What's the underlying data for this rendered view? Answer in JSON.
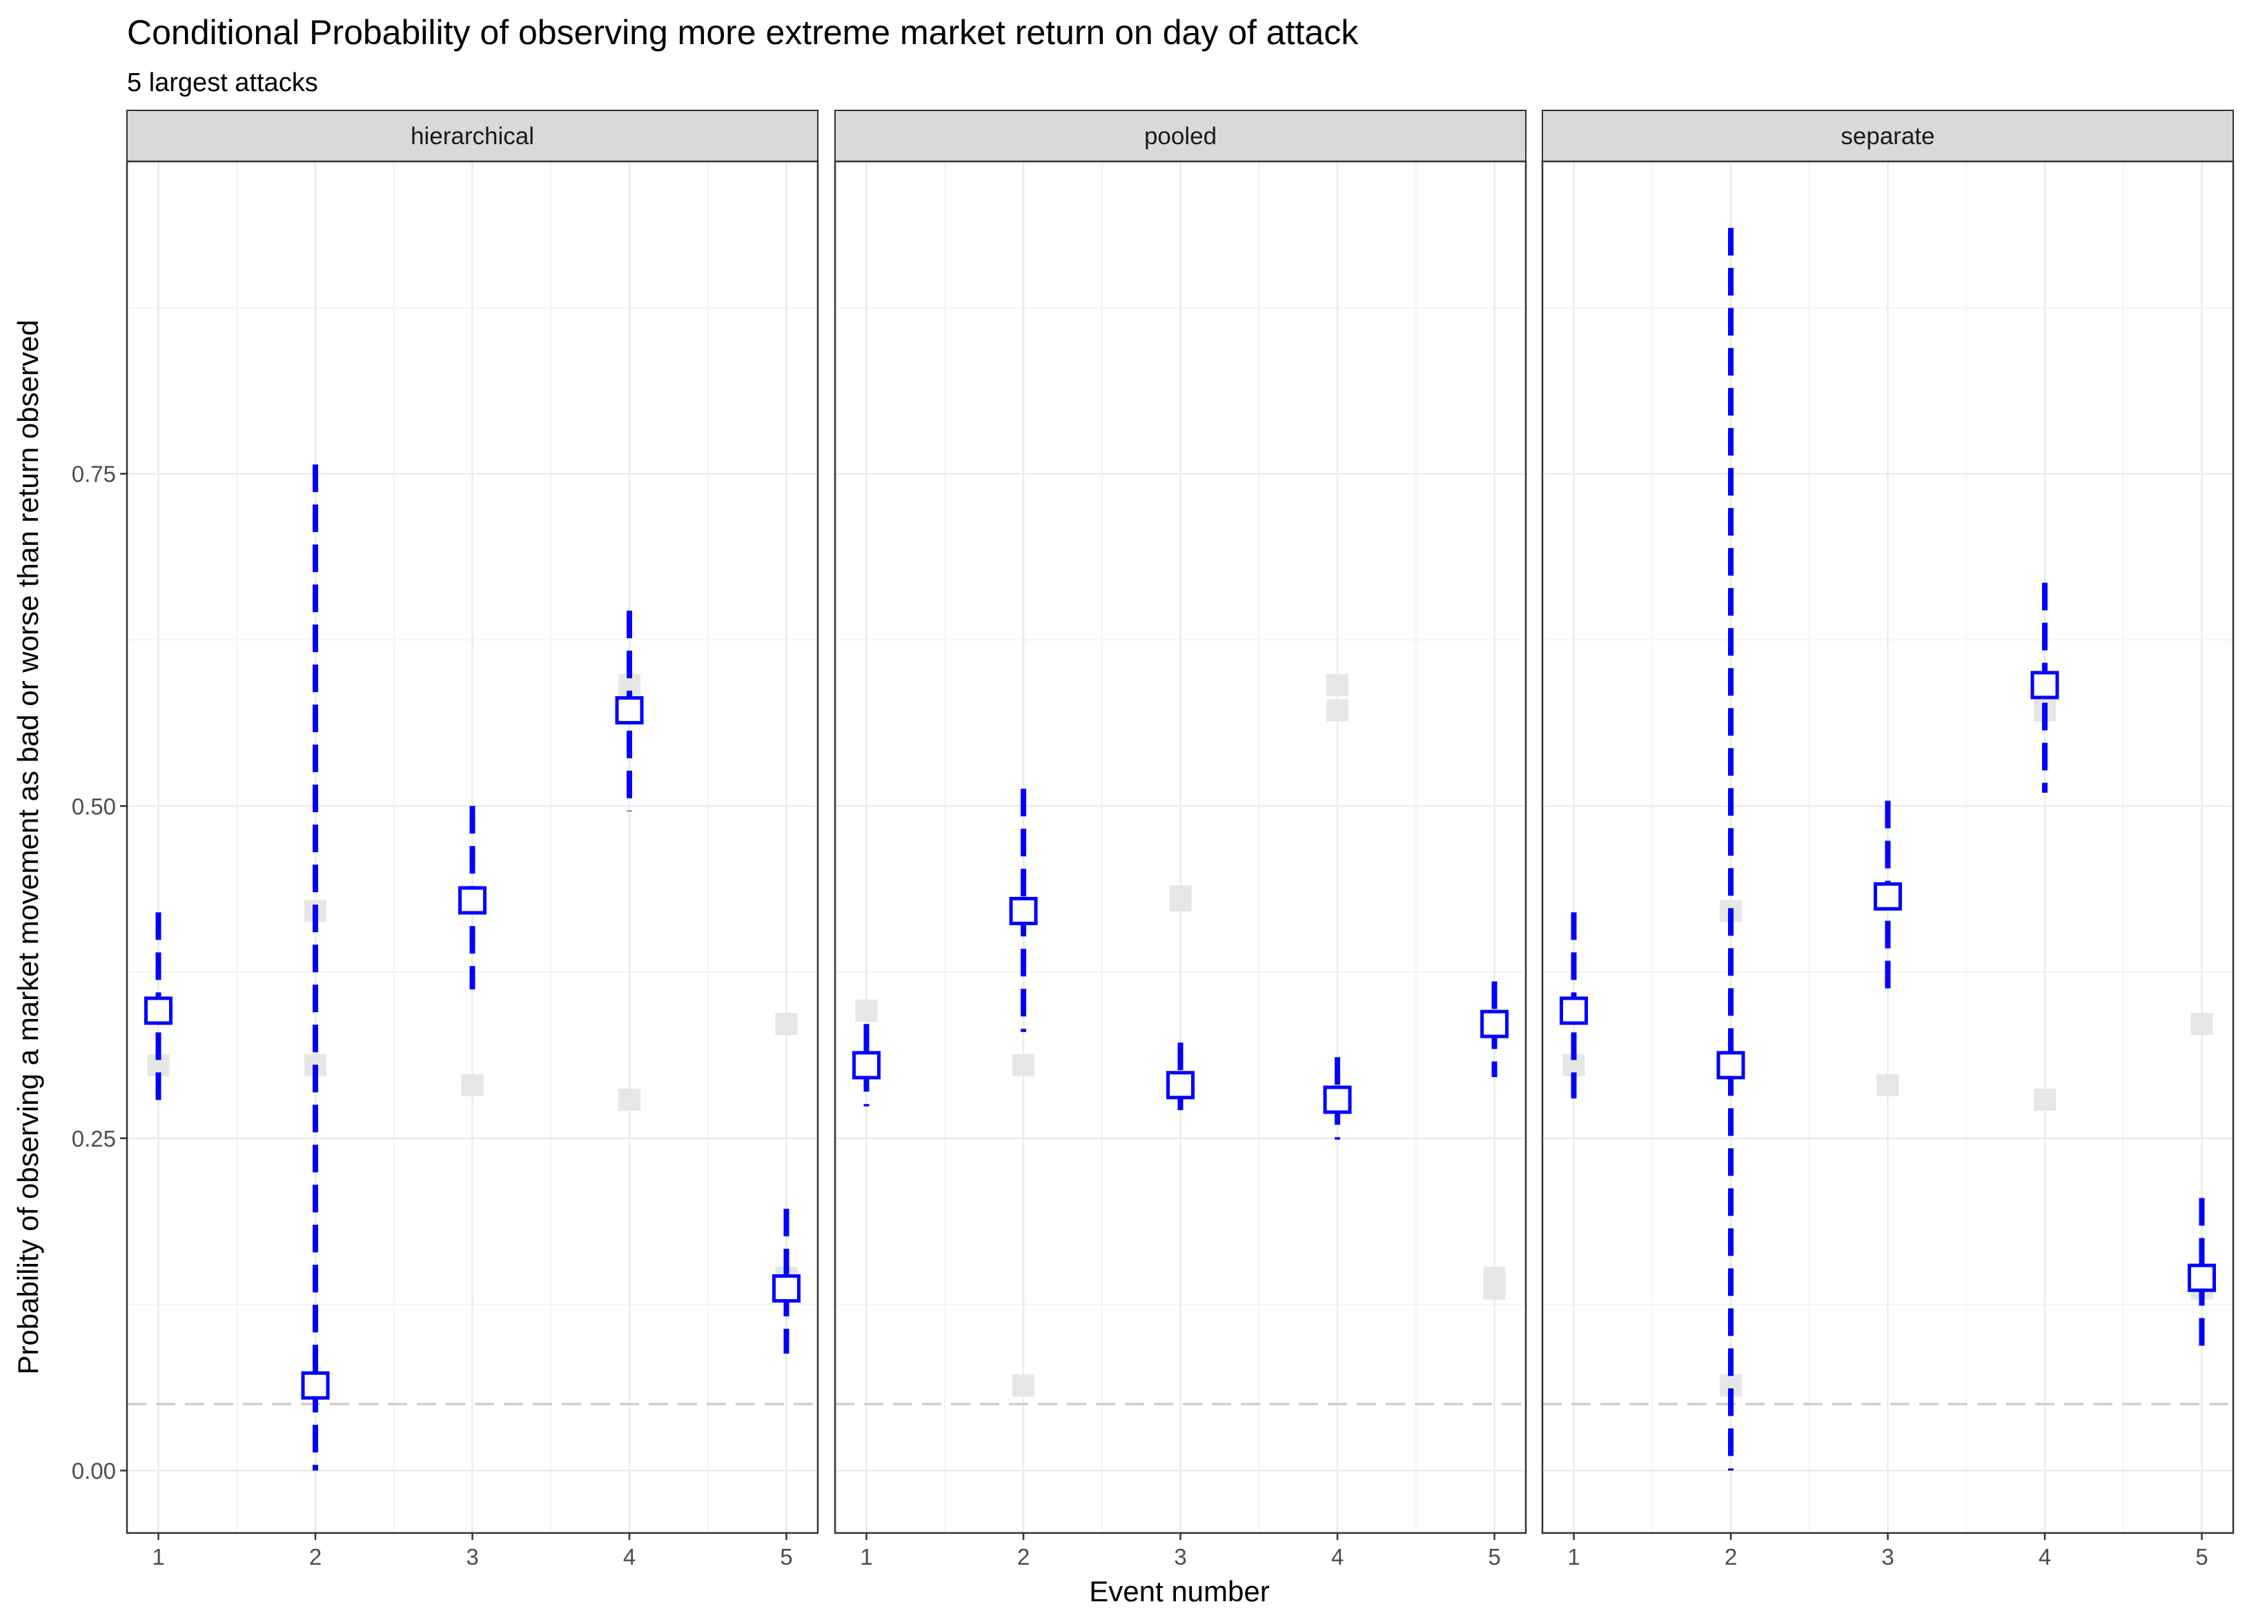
{
  "chart_data": {
    "type": "scatter",
    "title": "Conditional Probability of observing more extreme market return on day of attack",
    "subtitle": "5 largest attacks",
    "xlabel": "Event number",
    "ylabel": "Probability of observing a market movement as bad or worse than return observed",
    "x": [
      1,
      2,
      3,
      4,
      5
    ],
    "x_tick_labels": [
      "1",
      "2",
      "3",
      "4",
      "5"
    ],
    "xlim": [
      0.8,
      5.2
    ],
    "ylim": [
      -0.047,
      0.985
    ],
    "y_ticks": [
      0,
      0.25,
      0.5,
      0.75
    ],
    "y_tick_labels": [
      "0.00",
      "0.25",
      "0.50",
      "0.75"
    ],
    "reference_line": 0.05,
    "grid": true,
    "colors": {
      "estimate": "#0000FF",
      "ghost": "#E6E6E6",
      "reference": "#C8C8C8",
      "strip_fill": "#D9D9D9",
      "grid_major": "#EBEBEB",
      "grid_minor": "#F4F4F4"
    },
    "panels": [
      {
        "name": "hierarchical",
        "estimate": [
          0.346,
          0.064,
          0.429,
          0.572,
          0.137
        ],
        "lower": [
          0.275,
          0.0,
          0.362,
          0.496,
          0.088
        ],
        "upper": [
          0.42,
          0.757,
          0.5,
          0.647,
          0.197
        ],
        "comparison_estimates": [
          [
            0.305,
            0.346
          ],
          [
            0.305,
            0.421
          ],
          [
            0.29,
            0.432
          ],
          [
            0.279,
            0.591
          ],
          [
            0.336,
            0.145
          ]
        ]
      },
      {
        "name": "pooled",
        "estimate": [
          0.305,
          0.421,
          0.29,
          0.279,
          0.336
        ],
        "lower": [
          0.274,
          0.33,
          0.262,
          0.249,
          0.296
        ],
        "upper": [
          0.336,
          0.513,
          0.322,
          0.311,
          0.368
        ],
        "comparison_estimates": [
          [
            0.346,
            0.346
          ],
          [
            0.064,
            0.305
          ],
          [
            0.429,
            0.432
          ],
          [
            0.572,
            0.591
          ],
          [
            0.137,
            0.145
          ]
        ]
      },
      {
        "name": "separate",
        "estimate": [
          0.346,
          0.305,
          0.432,
          0.591,
          0.145
        ],
        "lower": [
          0.28,
          0.0,
          0.362,
          0.51,
          0.093
        ],
        "upper": [
          0.42,
          0.935,
          0.504,
          0.668,
          0.205
        ],
        "comparison_estimates": [
          [
            0.305,
            0.346
          ],
          [
            0.064,
            0.421
          ],
          [
            0.29,
            0.429
          ],
          [
            0.279,
            0.572
          ],
          [
            0.336,
            0.137
          ]
        ]
      }
    ]
  }
}
